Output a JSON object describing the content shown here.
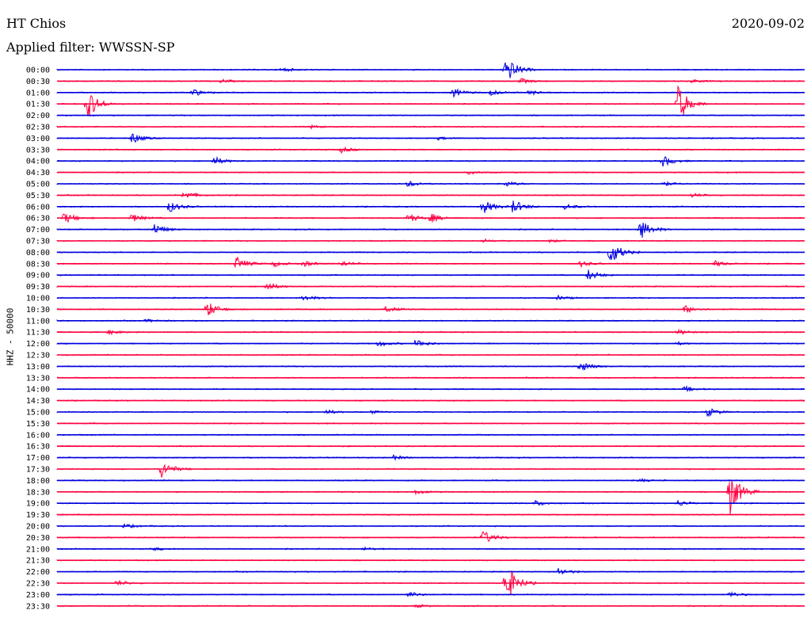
{
  "header": {
    "station": "HT Chios",
    "date": "2020-09-02",
    "filter_label": "Applied filter: WWSSN-SP"
  },
  "chart_data": {
    "type": "line",
    "ylabel": "HHZ - 50000",
    "colors": {
      "even_line": "#0000e0",
      "odd_line": "#ff0040"
    },
    "time_labels": [
      "00:00",
      "00:30",
      "01:00",
      "01:30",
      "02:00",
      "02:30",
      "03:00",
      "03:30",
      "04:00",
      "04:30",
      "05:00",
      "05:30",
      "06:00",
      "06:30",
      "07:00",
      "07:30",
      "08:00",
      "08:30",
      "09:00",
      "09:30",
      "10:00",
      "10:30",
      "11:00",
      "11:30",
      "12:00",
      "12:30",
      "13:00",
      "13:30",
      "14:00",
      "14:30",
      "15:00",
      "15:30",
      "16:00",
      "16:30",
      "17:00",
      "17:30",
      "18:00",
      "18:30",
      "19:00",
      "19:30",
      "20:00",
      "20:30",
      "21:00",
      "21:30",
      "22:00",
      "22:30",
      "23:00",
      "23:30"
    ],
    "traces": [
      {
        "time": "00:00",
        "events": [
          {
            "t": 0.3,
            "amp": 0.15
          },
          {
            "t": 0.6,
            "amp": 1.0
          }
        ]
      },
      {
        "time": "00:30",
        "events": [
          {
            "t": 0.22,
            "amp": 0.12
          },
          {
            "t": 0.62,
            "amp": 0.2
          },
          {
            "t": 0.85,
            "amp": 0.12
          }
        ]
      },
      {
        "time": "01:00",
        "events": [
          {
            "t": 0.18,
            "amp": 0.3
          },
          {
            "t": 0.53,
            "amp": 0.3
          },
          {
            "t": 0.58,
            "amp": 0.2
          },
          {
            "t": 0.63,
            "amp": 0.2
          }
        ]
      },
      {
        "time": "01:30",
        "events": [
          {
            "t": 0.04,
            "amp": 1.1
          },
          {
            "t": 0.83,
            "amp": 1.4
          }
        ]
      },
      {
        "time": "02:00",
        "events": []
      },
      {
        "time": "02:30",
        "events": [
          {
            "t": 0.34,
            "amp": 0.1
          }
        ]
      },
      {
        "time": "03:00",
        "events": [
          {
            "t": 0.1,
            "amp": 0.4
          },
          {
            "t": 0.51,
            "amp": 0.1
          }
        ]
      },
      {
        "time": "03:30",
        "events": [
          {
            "t": 0.38,
            "amp": 0.2
          }
        ]
      },
      {
        "time": "04:00",
        "events": [
          {
            "t": 0.21,
            "amp": 0.3
          },
          {
            "t": 0.81,
            "amp": 0.4
          }
        ]
      },
      {
        "time": "04:30",
        "events": [
          {
            "t": 0.55,
            "amp": 0.1
          }
        ]
      },
      {
        "time": "05:00",
        "events": [
          {
            "t": 0.47,
            "amp": 0.2
          },
          {
            "t": 0.6,
            "amp": 0.2
          },
          {
            "t": 0.81,
            "amp": 0.15
          }
        ]
      },
      {
        "time": "05:30",
        "events": [
          {
            "t": 0.17,
            "amp": 0.3
          },
          {
            "t": 0.85,
            "amp": 0.15
          }
        ]
      },
      {
        "time": "06:00",
        "events": [
          {
            "t": 0.15,
            "amp": 0.4
          },
          {
            "t": 0.57,
            "amp": 0.5
          },
          {
            "t": 0.61,
            "amp": 0.5
          },
          {
            "t": 0.68,
            "amp": 0.2
          }
        ]
      },
      {
        "time": "06:30",
        "events": [
          {
            "t": 0.01,
            "amp": 0.4
          },
          {
            "t": 0.1,
            "amp": 0.3
          },
          {
            "t": 0.47,
            "amp": 0.3
          },
          {
            "t": 0.5,
            "amp": 0.3
          }
        ]
      },
      {
        "time": "07:00",
        "events": [
          {
            "t": 0.13,
            "amp": 0.4
          },
          {
            "t": 0.78,
            "amp": 0.7
          }
        ]
      },
      {
        "time": "07:30",
        "events": [
          {
            "t": 0.57,
            "amp": 0.1
          },
          {
            "t": 0.66,
            "amp": 0.1
          }
        ]
      },
      {
        "time": "08:00",
        "events": [
          {
            "t": 0.74,
            "amp": 0.9
          }
        ]
      },
      {
        "time": "08:30",
        "events": [
          {
            "t": 0.24,
            "amp": 0.5
          },
          {
            "t": 0.29,
            "amp": 0.2
          },
          {
            "t": 0.33,
            "amp": 0.2
          },
          {
            "t": 0.38,
            "amp": 0.2
          },
          {
            "t": 0.7,
            "amp": 0.2
          },
          {
            "t": 0.88,
            "amp": 0.2
          }
        ]
      },
      {
        "time": "09:00",
        "events": [
          {
            "t": 0.71,
            "amp": 0.4
          }
        ]
      },
      {
        "time": "09:30",
        "events": [
          {
            "t": 0.28,
            "amp": 0.3
          }
        ]
      },
      {
        "time": "10:00",
        "events": [
          {
            "t": 0.33,
            "amp": 0.2
          },
          {
            "t": 0.67,
            "amp": 0.15
          }
        ]
      },
      {
        "time": "10:30",
        "events": [
          {
            "t": 0.2,
            "amp": 0.6
          },
          {
            "t": 0.44,
            "amp": 0.2
          },
          {
            "t": 0.84,
            "amp": 0.3
          }
        ]
      },
      {
        "time": "11:00",
        "events": [
          {
            "t": 0.12,
            "amp": 0.1
          }
        ]
      },
      {
        "time": "11:30",
        "events": [
          {
            "t": 0.07,
            "amp": 0.15
          },
          {
            "t": 0.83,
            "amp": 0.2
          }
        ]
      },
      {
        "time": "12:00",
        "events": [
          {
            "t": 0.43,
            "amp": 0.2
          },
          {
            "t": 0.48,
            "amp": 0.3
          },
          {
            "t": 0.83,
            "amp": 0.1
          }
        ]
      },
      {
        "time": "12:30",
        "events": []
      },
      {
        "time": "13:00",
        "events": [
          {
            "t": 0.7,
            "amp": 0.4
          }
        ]
      },
      {
        "time": "13:30",
        "events": []
      },
      {
        "time": "14:00",
        "events": [
          {
            "t": 0.84,
            "amp": 0.2
          }
        ]
      },
      {
        "time": "14:30",
        "events": []
      },
      {
        "time": "15:00",
        "events": [
          {
            "t": 0.36,
            "amp": 0.15
          },
          {
            "t": 0.42,
            "amp": 0.1
          },
          {
            "t": 0.87,
            "amp": 0.3
          }
        ]
      },
      {
        "time": "15:30",
        "events": []
      },
      {
        "time": "16:00",
        "events": []
      },
      {
        "time": "16:30",
        "events": []
      },
      {
        "time": "17:00",
        "events": [
          {
            "t": 0.45,
            "amp": 0.15
          }
        ]
      },
      {
        "time": "17:30",
        "events": [
          {
            "t": 0.14,
            "amp": 0.6
          }
        ]
      },
      {
        "time": "18:00",
        "events": [
          {
            "t": 0.78,
            "amp": 0.1
          }
        ]
      },
      {
        "time": "18:30",
        "events": [
          {
            "t": 0.48,
            "amp": 0.15
          },
          {
            "t": 0.9,
            "amp": 1.6
          }
        ]
      },
      {
        "time": "19:00",
        "events": [
          {
            "t": 0.64,
            "amp": 0.2
          },
          {
            "t": 0.83,
            "amp": 0.2
          }
        ]
      },
      {
        "time": "19:30",
        "events": []
      },
      {
        "time": "20:00",
        "events": [
          {
            "t": 0.09,
            "amp": 0.15
          }
        ]
      },
      {
        "time": "20:30",
        "events": [
          {
            "t": 0.57,
            "amp": 0.5
          }
        ]
      },
      {
        "time": "21:00",
        "events": [
          {
            "t": 0.13,
            "amp": 0.1
          },
          {
            "t": 0.41,
            "amp": 0.1
          }
        ]
      },
      {
        "time": "21:30",
        "events": []
      },
      {
        "time": "22:00",
        "events": [
          {
            "t": 0.67,
            "amp": 0.3
          }
        ]
      },
      {
        "time": "22:30",
        "events": [
          {
            "t": 0.08,
            "amp": 0.2
          },
          {
            "t": 0.6,
            "amp": 1.5
          }
        ]
      },
      {
        "time": "23:00",
        "events": [
          {
            "t": 0.47,
            "amp": 0.2
          },
          {
            "t": 0.9,
            "amp": 0.2
          }
        ]
      },
      {
        "time": "23:30",
        "events": [
          {
            "t": 0.48,
            "amp": 0.1
          }
        ]
      }
    ]
  }
}
